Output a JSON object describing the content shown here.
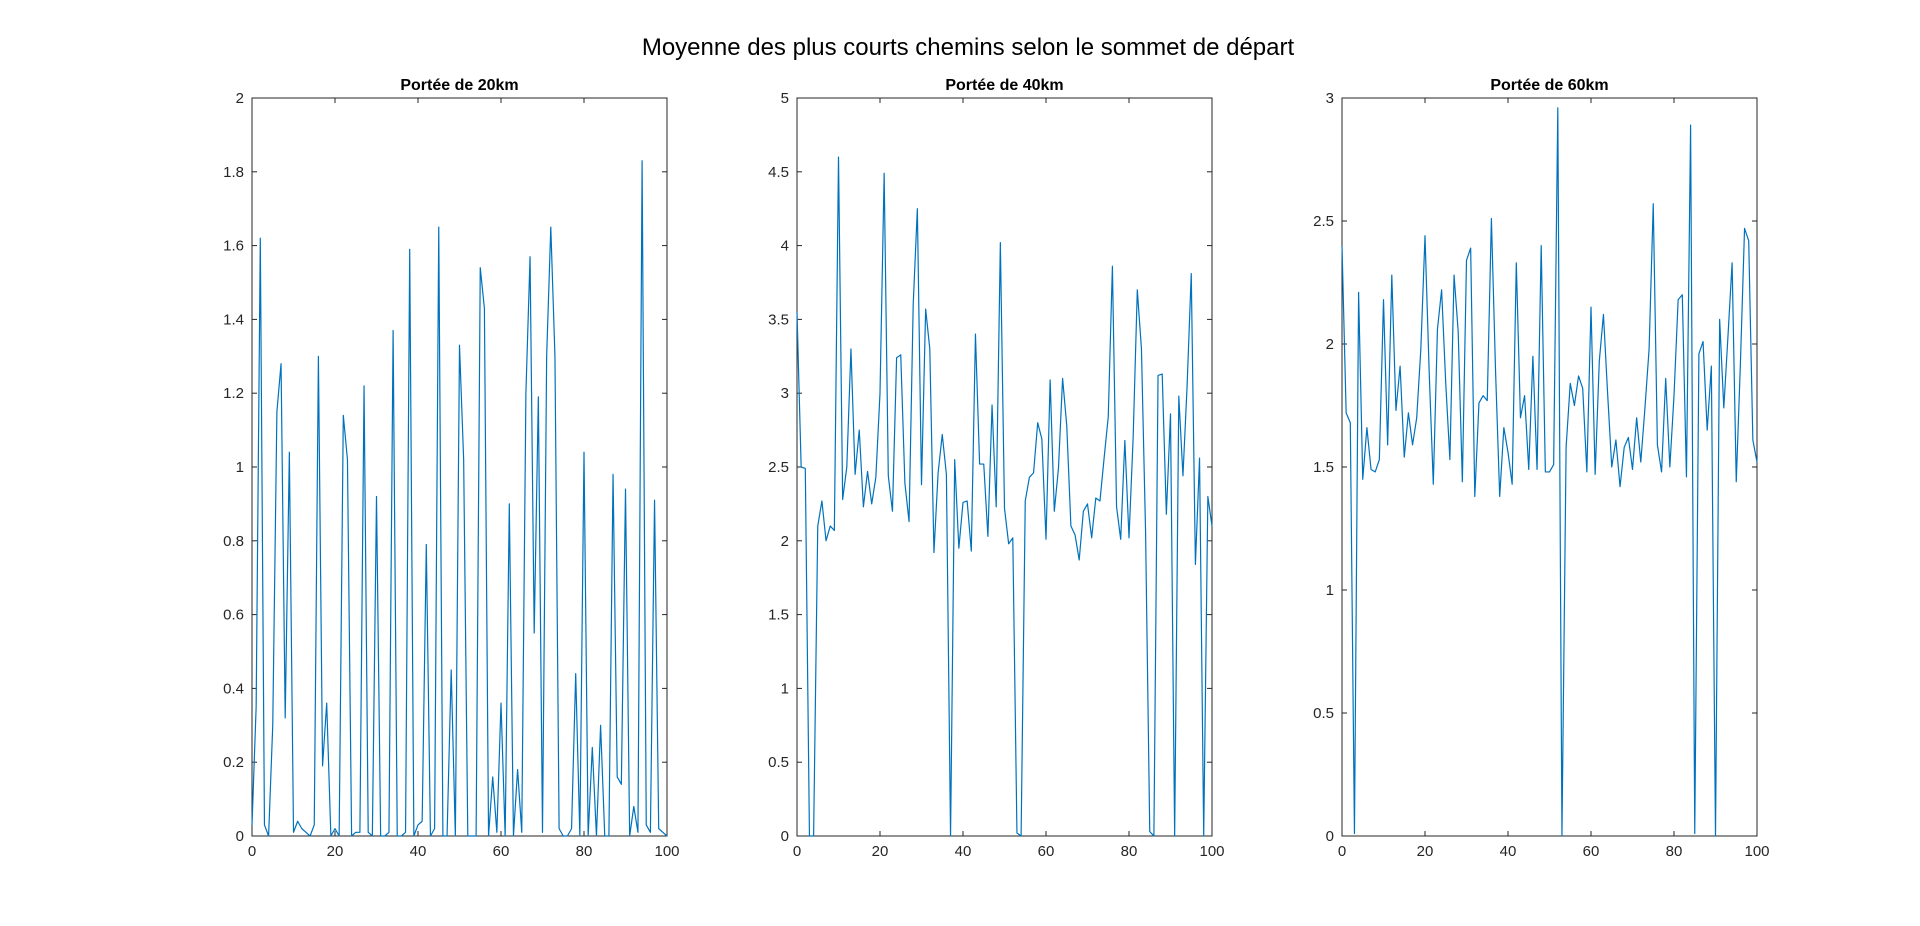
{
  "figure": {
    "suptitle": "Moyenne des plus courts chemins selon le sommet de départ"
  },
  "colors": {
    "series": "#0072BD",
    "axis": "#262626",
    "background": "#ffffff"
  },
  "chart_data": [
    {
      "type": "line",
      "title": "Portée de 20km",
      "xlabel": "",
      "ylabel": "",
      "xlim": [
        0,
        100
      ],
      "ylim": [
        0,
        2
      ],
      "xticks": [
        0,
        20,
        40,
        60,
        80,
        100
      ],
      "yticks": [
        0,
        0.2,
        0.4,
        0.6,
        0.8,
        1,
        1.2,
        1.4,
        1.6,
        1.8,
        2
      ],
      "grid": false,
      "series": [
        {
          "x": [
            0,
            1,
            2,
            3,
            4,
            5,
            6,
            7,
            8,
            9,
            10,
            11,
            12,
            13,
            14,
            15,
            16,
            17,
            18,
            19,
            20,
            21,
            22,
            23,
            24,
            25,
            26,
            27,
            28,
            29,
            30,
            31,
            32,
            33,
            34,
            35,
            36,
            37,
            38,
            39,
            40,
            41,
            42,
            43,
            44,
            45,
            46,
            47,
            48,
            49,
            50,
            51,
            52,
            53,
            54,
            55,
            56,
            57,
            58,
            59,
            60,
            61,
            62,
            63,
            64,
            65,
            66,
            67,
            68,
            69,
            70,
            71,
            72,
            73,
            74,
            75,
            76,
            77,
            78,
            79,
            80,
            81,
            82,
            83,
            84,
            85,
            86,
            87,
            88,
            89,
            90,
            91,
            92,
            93,
            94,
            95,
            96,
            97,
            98,
            99,
            100
          ],
          "values": [
            0.03,
            0.35,
            1.62,
            0.03,
            0,
            0.3,
            1.15,
            1.28,
            0.32,
            1.04,
            0.01,
            0.04,
            0.02,
            0.01,
            0,
            0.03,
            1.3,
            0.19,
            0.36,
            0,
            0.02,
            0,
            1.14,
            1.02,
            0,
            0.01,
            0.01,
            1.22,
            0.01,
            0,
            0.92,
            0,
            0,
            0.01,
            1.37,
            0,
            0,
            0.01,
            1.59,
            0,
            0.03,
            0.04,
            0.79,
            0,
            0.02,
            1.65,
            0,
            0,
            0.45,
            0,
            1.33,
            1.02,
            0,
            0,
            0,
            1.54,
            1.43,
            0,
            0.16,
            0.01,
            0.36,
            0,
            0.9,
            0,
            0.18,
            0.01,
            1.2,
            1.57,
            0.55,
            1.19,
            0.01,
            1.3,
            1.65,
            1.3,
            0.02,
            0,
            0,
            0.02,
            0.44,
            0,
            1.04,
            0,
            0.24,
            0,
            0.3,
            0,
            0,
            0.98,
            0.16,
            0.14,
            0.94,
            0,
            0.08,
            0.01,
            1.83,
            0.03,
            0.01,
            0.91,
            0.02,
            0.01,
            0
          ]
        }
      ]
    },
    {
      "type": "line",
      "title": "Portée de 40km",
      "xlabel": "",
      "ylabel": "",
      "xlim": [
        0,
        100
      ],
      "ylim": [
        0,
        5
      ],
      "xticks": [
        0,
        20,
        40,
        60,
        80,
        100
      ],
      "yticks": [
        0,
        0.5,
        1,
        1.5,
        2,
        2.5,
        3,
        3.5,
        4,
        4.5,
        5
      ],
      "grid": false,
      "series": [
        {
          "x": [
            0,
            1,
            2,
            3,
            4,
            5,
            6,
            7,
            8,
            9,
            10,
            11,
            12,
            13,
            14,
            15,
            16,
            17,
            18,
            19,
            20,
            21,
            22,
            23,
            24,
            25,
            26,
            27,
            28,
            29,
            30,
            31,
            32,
            33,
            34,
            35,
            36,
            37,
            38,
            39,
            40,
            41,
            42,
            43,
            44,
            45,
            46,
            47,
            48,
            49,
            50,
            51,
            52,
            53,
            54,
            55,
            56,
            57,
            58,
            59,
            60,
            61,
            62,
            63,
            64,
            65,
            66,
            67,
            68,
            69,
            70,
            71,
            72,
            73,
            74,
            75,
            76,
            77,
            78,
            79,
            80,
            81,
            82,
            83,
            84,
            85,
            86,
            87,
            88,
            89,
            90,
            91,
            92,
            93,
            94,
            95,
            96,
            97,
            98,
            99,
            100
          ],
          "values": [
            3.55,
            2.5,
            2.49,
            0,
            0,
            2.1,
            2.27,
            2.0,
            2.1,
            2.07,
            4.6,
            2.28,
            2.5,
            3.3,
            2.45,
            2.75,
            2.23,
            2.47,
            2.25,
            2.43,
            3.0,
            4.49,
            2.44,
            2.2,
            3.24,
            3.26,
            2.39,
            2.13,
            3.6,
            4.25,
            2.38,
            3.57,
            3.3,
            1.92,
            2.46,
            2.72,
            2.45,
            0,
            2.55,
            1.95,
            2.26,
            2.27,
            1.93,
            3.4,
            2.52,
            2.52,
            2.03,
            2.92,
            2.23,
            4.02,
            2.22,
            1.98,
            2.02,
            0.02,
            0,
            2.27,
            2.43,
            2.46,
            2.8,
            2.69,
            2.01,
            3.09,
            2.2,
            2.49,
            3.1,
            2.78,
            2.1,
            2.04,
            1.87,
            2.2,
            2.25,
            2.02,
            2.29,
            2.27,
            2.56,
            2.84,
            3.86,
            2.23,
            2.01,
            2.68,
            2.02,
            2.7,
            3.7,
            3.3,
            2.05,
            0.03,
            0,
            3.12,
            3.13,
            2.18,
            2.86,
            0,
            2.98,
            2.44,
            3.05,
            3.81,
            1.84,
            2.56,
            0,
            2.3,
            2.1
          ]
        }
      ]
    },
    {
      "type": "line",
      "title": "Portée de 60km",
      "xlabel": "",
      "ylabel": "",
      "xlim": [
        0,
        100
      ],
      "ylim": [
        0,
        3
      ],
      "xticks": [
        0,
        20,
        40,
        60,
        80,
        100
      ],
      "yticks": [
        0,
        0.5,
        1,
        1.5,
        2,
        2.5,
        3
      ],
      "grid": false,
      "series": [
        {
          "x": [
            0,
            1,
            2,
            3,
            4,
            5,
            6,
            7,
            8,
            9,
            10,
            11,
            12,
            13,
            14,
            15,
            16,
            17,
            18,
            19,
            20,
            21,
            22,
            23,
            24,
            25,
            26,
            27,
            28,
            29,
            30,
            31,
            32,
            33,
            34,
            35,
            36,
            37,
            38,
            39,
            40,
            41,
            42,
            43,
            44,
            45,
            46,
            47,
            48,
            49,
            50,
            51,
            52,
            53,
            54,
            55,
            56,
            57,
            58,
            59,
            60,
            61,
            62,
            63,
            64,
            65,
            66,
            67,
            68,
            69,
            70,
            71,
            72,
            73,
            74,
            75,
            76,
            77,
            78,
            79,
            80,
            81,
            82,
            83,
            84,
            85,
            86,
            87,
            88,
            89,
            90,
            91,
            92,
            93,
            94,
            95,
            96,
            97,
            98,
            99,
            100
          ],
          "values": [
            2.4,
            1.72,
            1.68,
            0.01,
            2.21,
            1.45,
            1.66,
            1.49,
            1.48,
            1.53,
            2.18,
            1.59,
            2.28,
            1.73,
            1.91,
            1.54,
            1.72,
            1.59,
            1.7,
            1.98,
            2.44,
            1.89,
            1.43,
            2.06,
            2.22,
            1.84,
            1.53,
            2.28,
            2.05,
            1.44,
            2.34,
            2.39,
            1.38,
            1.76,
            1.79,
            1.77,
            2.51,
            1.89,
            1.38,
            1.66,
            1.56,
            1.43,
            2.33,
            1.7,
            1.79,
            1.49,
            1.95,
            1.49,
            2.4,
            1.48,
            1.48,
            1.51,
            2.96,
            0,
            1.58,
            1.84,
            1.75,
            1.87,
            1.82,
            1.48,
            2.15,
            1.47,
            1.93,
            2.12,
            1.8,
            1.5,
            1.61,
            1.42,
            1.58,
            1.62,
            1.49,
            1.7,
            1.52,
            1.74,
            1.98,
            2.57,
            1.59,
            1.48,
            1.86,
            1.5,
            1.79,
            2.18,
            2.2,
            1.46,
            2.89,
            0.01,
            1.96,
            2.01,
            1.65,
            1.91,
            0,
            2.1,
            1.74,
            2.03,
            2.33,
            1.44,
            1.92,
            2.47,
            2.42,
            1.61,
            1.52
          ]
        }
      ]
    }
  ]
}
